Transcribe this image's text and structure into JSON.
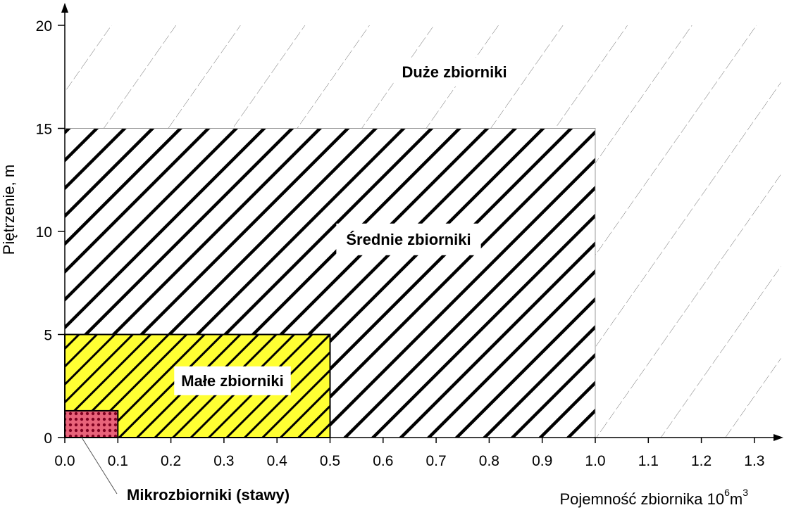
{
  "chart_data": {
    "type": "area",
    "title": "",
    "xlabel": "Pojemność zbiornika 10",
    "xlabel_sup1": "6",
    "xlabel_mid": "m",
    "xlabel_sup2": "3",
    "ylabel": "Piętrzenie, m",
    "xlim": [
      0,
      1.35
    ],
    "ylim": [
      0,
      20
    ],
    "x_ticks": [
      "0.0",
      "0.1",
      "0.2",
      "0.3",
      "0.4",
      "0.5",
      "0.6",
      "0.7",
      "0.8",
      "0.9",
      "1.0",
      "1.1",
      "1.2",
      "1.3"
    ],
    "y_ticks": [
      "0",
      "5",
      "10",
      "15",
      "20"
    ],
    "grid": false,
    "regions": [
      {
        "name": "Duże zbiorniki",
        "x": [
          0,
          1.35
        ],
        "y": [
          0,
          20
        ],
        "fill": "#ffffff",
        "hatch": "thin-diagonal"
      },
      {
        "name": "Średnie zbiorniki",
        "x": [
          0,
          1.0
        ],
        "y": [
          0,
          15
        ],
        "fill": "#ffffff",
        "hatch": "thick-diagonal"
      },
      {
        "name": "Małe zbiorniki",
        "x": [
          0,
          0.5
        ],
        "y": [
          0,
          5
        ],
        "fill": "#ffff33",
        "hatch": "thick-diagonal"
      },
      {
        "name": "Mikrozbiorniki (stawy)",
        "x": [
          0,
          0.1
        ],
        "y": [
          0,
          1.3
        ],
        "fill": "#e8637a",
        "hatch": "dots"
      }
    ]
  },
  "colors": {
    "axis": "#000000",
    "thin_hatch": "#777777",
    "thick_hatch": "#000000",
    "small_fill": "#ffff33",
    "micro_fill": "#e8637a",
    "micro_dots": "#800020"
  }
}
